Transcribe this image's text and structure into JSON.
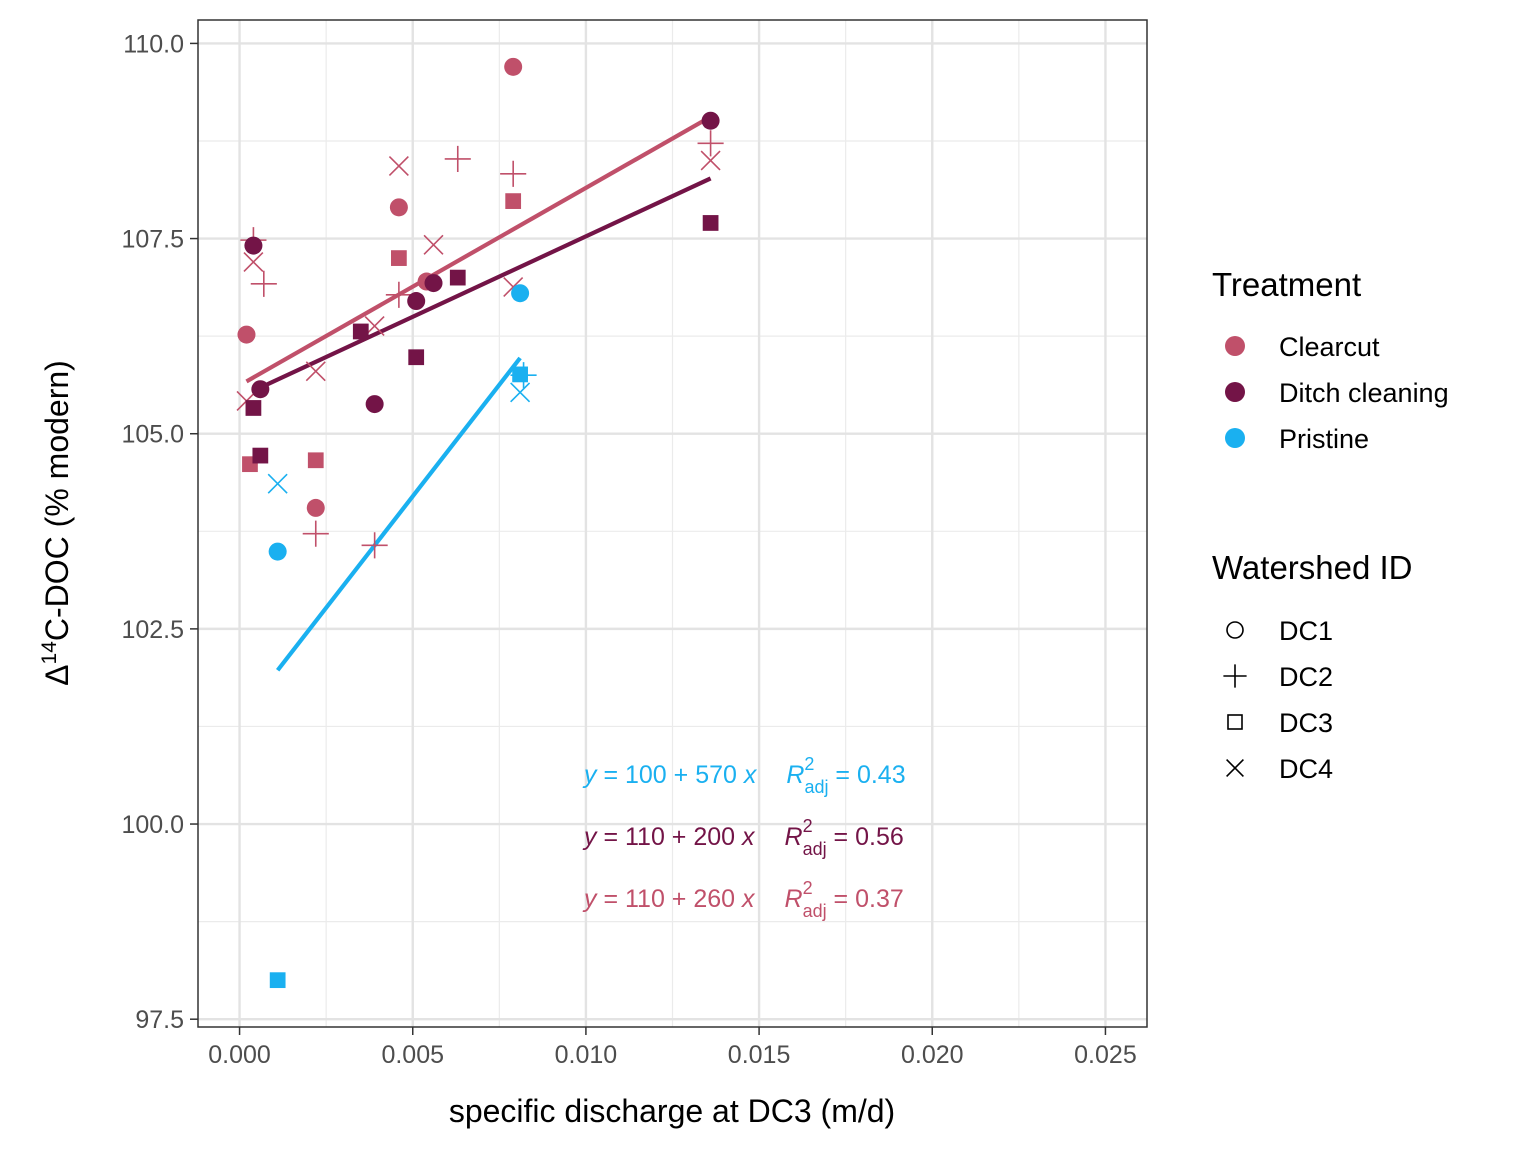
{
  "chart_data": {
    "type": "scatter",
    "xlabel": "specific discharge at DC3 (m/d)",
    "ylabel_delta": "Δ",
    "ylabel_super": "14",
    "ylabel_main": "C-DOC  (% modern)",
    "xlim": [
      -0.0012,
      0.0262
    ],
    "ylim": [
      97.4,
      110.3
    ],
    "x_ticks": [
      0.0,
      0.005,
      0.01,
      0.015,
      0.02,
      0.025
    ],
    "x_tick_labels": [
      "0.000",
      "0.005",
      "0.010",
      "0.015",
      "0.020",
      "0.025"
    ],
    "y_ticks": [
      97.5,
      100.0,
      102.5,
      105.0,
      107.5,
      110.0
    ],
    "y_tick_labels": [
      "97.5",
      "100.0",
      "102.5",
      "105.0",
      "107.5",
      "110.0"
    ],
    "grid": true,
    "legend_placement": "right",
    "treatments": [
      {
        "name": "Clearcut",
        "color": "#c0506a"
      },
      {
        "name": "Ditch cleaning",
        "color": "#731447"
      },
      {
        "name": "Pristine",
        "color": "#1ab0f0"
      }
    ],
    "shapes": [
      {
        "name": "DC1",
        "symbol": "circle"
      },
      {
        "name": "DC2",
        "symbol": "plus"
      },
      {
        "name": "DC3",
        "symbol": "square"
      },
      {
        "name": "DC4",
        "symbol": "cross"
      }
    ],
    "legend": {
      "treatment_title": "Treatment",
      "watershed_title": "Watershed ID"
    },
    "points": [
      {
        "x": 0.0002,
        "y": 106.27,
        "treatment": "Clearcut",
        "watershed": "DC1"
      },
      {
        "x": 0.0046,
        "y": 107.9,
        "treatment": "Clearcut",
        "watershed": "DC1"
      },
      {
        "x": 0.0079,
        "y": 109.7,
        "treatment": "Clearcut",
        "watershed": "DC1"
      },
      {
        "x": 0.0022,
        "y": 104.05,
        "treatment": "Clearcut",
        "watershed": "DC1"
      },
      {
        "x": 0.0054,
        "y": 106.95,
        "treatment": "Clearcut",
        "watershed": "DC1"
      },
      {
        "x": 0.0004,
        "y": 107.48,
        "treatment": "Clearcut",
        "watershed": "DC2"
      },
      {
        "x": 0.0007,
        "y": 106.92,
        "treatment": "Clearcut",
        "watershed": "DC2"
      },
      {
        "x": 0.0063,
        "y": 108.52,
        "treatment": "Clearcut",
        "watershed": "DC2"
      },
      {
        "x": 0.0079,
        "y": 108.33,
        "treatment": "Clearcut",
        "watershed": "DC2"
      },
      {
        "x": 0.0046,
        "y": 106.78,
        "treatment": "Clearcut",
        "watershed": "DC2"
      },
      {
        "x": 0.0022,
        "y": 103.72,
        "treatment": "Clearcut",
        "watershed": "DC2"
      },
      {
        "x": 0.0039,
        "y": 103.57,
        "treatment": "Clearcut",
        "watershed": "DC2"
      },
      {
        "x": 0.0136,
        "y": 108.72,
        "treatment": "Clearcut",
        "watershed": "DC2"
      },
      {
        "x": 0.0003,
        "y": 104.61,
        "treatment": "Clearcut",
        "watershed": "DC3"
      },
      {
        "x": 0.0022,
        "y": 104.66,
        "treatment": "Clearcut",
        "watershed": "DC3"
      },
      {
        "x": 0.0046,
        "y": 107.25,
        "treatment": "Clearcut",
        "watershed": "DC3"
      },
      {
        "x": 0.0079,
        "y": 107.98,
        "treatment": "Clearcut",
        "watershed": "DC3"
      },
      {
        "x": 0.0002,
        "y": 105.42,
        "treatment": "Clearcut",
        "watershed": "DC4"
      },
      {
        "x": 0.0004,
        "y": 107.2,
        "treatment": "Clearcut",
        "watershed": "DC4"
      },
      {
        "x": 0.0022,
        "y": 105.8,
        "treatment": "Clearcut",
        "watershed": "DC4"
      },
      {
        "x": 0.0039,
        "y": 106.38,
        "treatment": "Clearcut",
        "watershed": "DC4"
      },
      {
        "x": 0.0046,
        "y": 108.43,
        "treatment": "Clearcut",
        "watershed": "DC4"
      },
      {
        "x": 0.0056,
        "y": 107.42,
        "treatment": "Clearcut",
        "watershed": "DC4"
      },
      {
        "x": 0.0079,
        "y": 106.88,
        "treatment": "Clearcut",
        "watershed": "DC4"
      },
      {
        "x": 0.0136,
        "y": 108.5,
        "treatment": "Clearcut",
        "watershed": "DC4"
      },
      {
        "x": 0.0004,
        "y": 107.41,
        "treatment": "Ditch cleaning",
        "watershed": "DC1"
      },
      {
        "x": 0.0006,
        "y": 105.57,
        "treatment": "Ditch cleaning",
        "watershed": "DC1"
      },
      {
        "x": 0.0039,
        "y": 105.38,
        "treatment": "Ditch cleaning",
        "watershed": "DC1"
      },
      {
        "x": 0.0051,
        "y": 106.7,
        "treatment": "Ditch cleaning",
        "watershed": "DC1"
      },
      {
        "x": 0.0056,
        "y": 106.93,
        "treatment": "Ditch cleaning",
        "watershed": "DC1"
      },
      {
        "x": 0.0136,
        "y": 109.01,
        "treatment": "Ditch cleaning",
        "watershed": "DC1"
      },
      {
        "x": 0.0004,
        "y": 105.33,
        "treatment": "Ditch cleaning",
        "watershed": "DC3"
      },
      {
        "x": 0.0006,
        "y": 104.72,
        "treatment": "Ditch cleaning",
        "watershed": "DC3"
      },
      {
        "x": 0.0035,
        "y": 106.31,
        "treatment": "Ditch cleaning",
        "watershed": "DC3"
      },
      {
        "x": 0.0051,
        "y": 105.98,
        "treatment": "Ditch cleaning",
        "watershed": "DC3"
      },
      {
        "x": 0.0063,
        "y": 107.0,
        "treatment": "Ditch cleaning",
        "watershed": "DC3"
      },
      {
        "x": 0.0136,
        "y": 107.7,
        "treatment": "Ditch cleaning",
        "watershed": "DC3"
      },
      {
        "x": 0.0011,
        "y": 103.49,
        "treatment": "Pristine",
        "watershed": "DC1"
      },
      {
        "x": 0.0081,
        "y": 106.8,
        "treatment": "Pristine",
        "watershed": "DC1"
      },
      {
        "x": 0.0082,
        "y": 105.75,
        "treatment": "Pristine",
        "watershed": "DC2"
      },
      {
        "x": 0.0011,
        "y": 98.0,
        "treatment": "Pristine",
        "watershed": "DC3"
      },
      {
        "x": 0.0081,
        "y": 105.76,
        "treatment": "Pristine",
        "watershed": "DC3"
      },
      {
        "x": 0.0011,
        "y": 104.36,
        "treatment": "Pristine",
        "watershed": "DC4"
      },
      {
        "x": 0.0081,
        "y": 105.53,
        "treatment": "Pristine",
        "watershed": "DC4"
      }
    ],
    "fit_lines": [
      {
        "treatment": "Clearcut",
        "x": [
          0.0002,
          0.0136
        ],
        "y": [
          105.67,
          109.06
        ]
      },
      {
        "treatment": "Ditch cleaning",
        "x": [
          0.0004,
          0.0136
        ],
        "y": [
          105.55,
          108.27
        ]
      },
      {
        "treatment": "Pristine",
        "x": [
          0.0011,
          0.0081
        ],
        "y": [
          101.97,
          105.97
        ]
      }
    ],
    "annotations": [
      {
        "treatment": "Pristine",
        "y_sym": "y",
        "eq": " = 100 + 570 ",
        "x_sym": "x",
        "r_sym": "R",
        "r_sup": "2",
        "r_sub": "adj",
        "r_val": " = 0.43"
      },
      {
        "treatment": "Ditch cleaning",
        "y_sym": "y",
        "eq": " = 110 + 200 ",
        "x_sym": "x",
        "r_sym": "R",
        "r_sup": "2",
        "r_sub": "adj",
        "r_val": " = 0.56"
      },
      {
        "treatment": "Clearcut",
        "y_sym": "y",
        "eq": " = 110 + 260 ",
        "x_sym": "x",
        "r_sym": "R",
        "r_sup": "2",
        "r_sub": "adj",
        "r_val": " = 0.37"
      }
    ]
  }
}
